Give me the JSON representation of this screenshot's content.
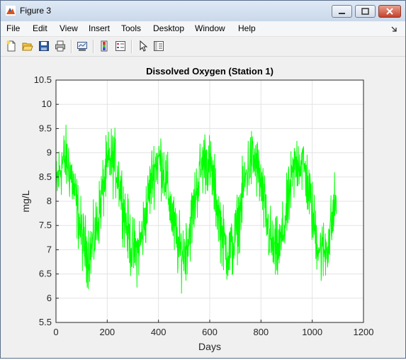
{
  "window": {
    "title": "Figure 3",
    "controls": [
      "minimize",
      "maximize",
      "close"
    ]
  },
  "menubar": {
    "items": [
      "File",
      "Edit",
      "View",
      "Insert",
      "Tools",
      "Desktop",
      "Window",
      "Help"
    ]
  },
  "toolbar": {
    "icons": [
      "new-figure-icon",
      "open-file-icon",
      "save-icon",
      "print-icon",
      "link-plot-icon",
      "insert-colorbar-icon",
      "insert-legend-icon",
      "edit-plot-icon",
      "property-inspector-icon"
    ]
  },
  "chart_data": {
    "type": "line",
    "title": "Dissolved Oxygen (Station 1)",
    "xlabel": "Days",
    "ylabel": "mg/L",
    "xlim": [
      0,
      1200
    ],
    "ylim": [
      5.5,
      10.5
    ],
    "xticks": [
      "0",
      "200",
      "400",
      "600",
      "800",
      "1000",
      "1200"
    ],
    "yticks": [
      "5.5",
      "6",
      "6.5",
      "7",
      "7.5",
      "8",
      "8.5",
      "9",
      "9.5",
      "10",
      "10.5"
    ],
    "grid": true,
    "series": [
      {
        "color": "#00ff00",
        "x_range": [
          0,
          1095
        ],
        "seasonal_mean": {
          "amplitude": 0.95,
          "mean": 7.9,
          "period_days": 183,
          "peak_day": 35
        },
        "noise_amplitude": 0.6,
        "observed_max": 10.35,
        "observed_min": 5.62
      }
    ]
  }
}
